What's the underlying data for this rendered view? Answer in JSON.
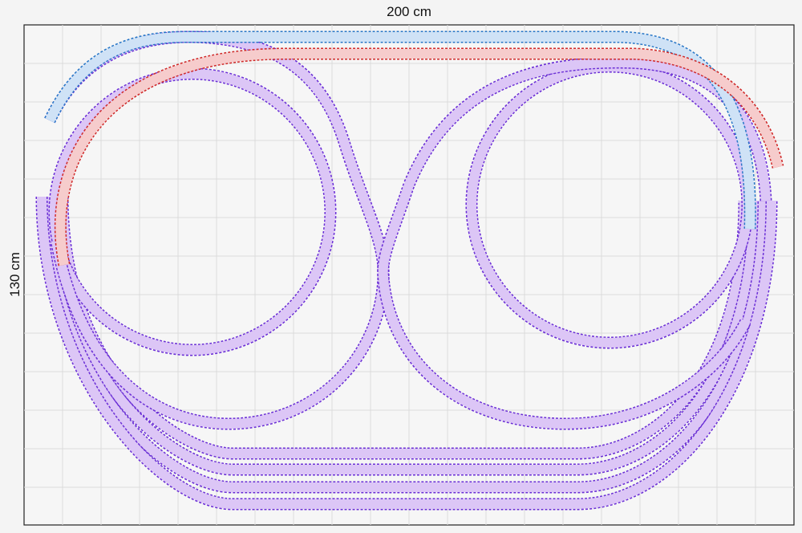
{
  "dimensions": {
    "width_label": "200 cm",
    "height_label": "130 cm"
  }
}
